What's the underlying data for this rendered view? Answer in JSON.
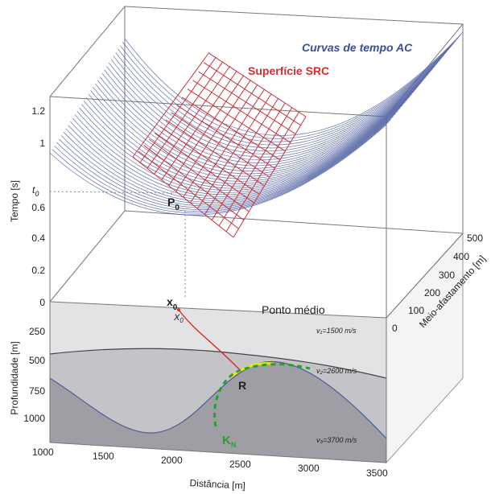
{
  "labels": {
    "curves": "Curvas de tempo AC",
    "surface": "Superfície SRC",
    "t0": "t",
    "t0_sub": "0",
    "p0": "P",
    "p0_sub": "0",
    "x0": "x",
    "x0_sub": "0",
    "x0_lower": "X",
    "x0_lower_sub": "0",
    "midpoint": "Ponto médio",
    "r": "R",
    "kn": "K",
    "kn_sub": "N",
    "v1": "v₁=1500 m/s",
    "v2": "v₂=2600 m/s",
    "v3": "v₃=3700 m/s"
  },
  "axes": {
    "time": {
      "title": "Tempo [s]",
      "ticks": [
        "1.2",
        "1",
        "0.6",
        "0.4",
        "0.2",
        "0"
      ]
    },
    "depth": {
      "title": "Profundidade [m]",
      "ticks": [
        "250",
        "500",
        "750",
        "1000"
      ]
    },
    "distance": {
      "title": "Distância [m]",
      "ticks": [
        "1000",
        "1500",
        "2000",
        "2500",
        "3000",
        "3500"
      ]
    },
    "half_offset": {
      "title": "Meio-afastamento [m]",
      "ticks": [
        "0",
        "100",
        "200",
        "300",
        "400",
        "500"
      ]
    }
  }
}
